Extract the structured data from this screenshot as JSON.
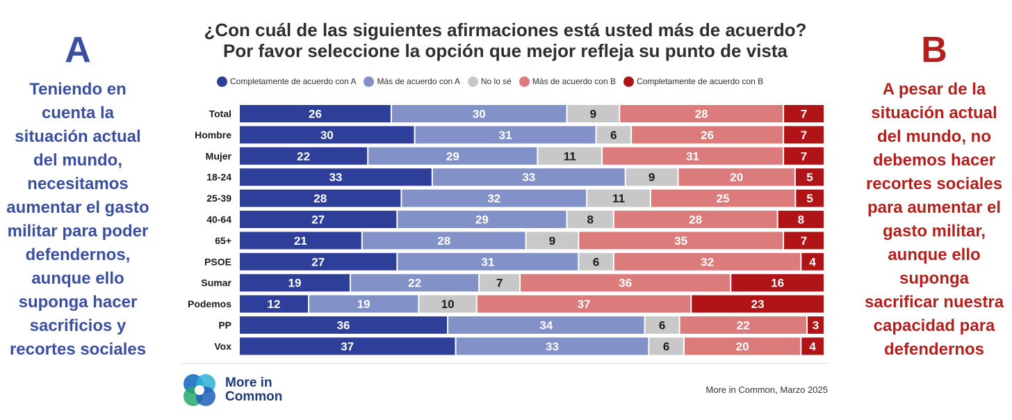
{
  "side_a": {
    "letter": "A",
    "text": "Teniendo en cuenta la situación actual del mundo, necesitamos aumentar el gasto militar para poder defendernos, aunque ello suponga hacer sacrificios y recortes sociales"
  },
  "side_b": {
    "letter": "B",
    "text": "A pesar de la situación actual del mundo, no debemos hacer recortes sociales para aumentar el gasto militar, aunque ello suponga sacrificar nuestra capacidad para defendernos"
  },
  "colors": {
    "side_a": "#3a4fa0",
    "side_b": "#b3201e",
    "series": [
      "#2e3f9a",
      "#8291c8",
      "#c8c8c8",
      "#dc7b7c",
      "#b01416"
    ],
    "label_light": "#ffffff",
    "label_dark": "#1a1a1a"
  },
  "chart_data": {
    "type": "bar",
    "orientation": "horizontal",
    "stacked": true,
    "title": "¿Con cuál de las siguientes afirmaciones está usted más de acuerdo?",
    "subtitle": "Por favor seleccione la opción que mejor refleja su punto de vista",
    "legend_position": "top",
    "categories": [
      "Total",
      "Hombre",
      "Mujer",
      "18-24",
      "25-39",
      "40-64",
      "65+",
      "PSOE",
      "Sumar",
      "Podemos",
      "PP",
      "Vox"
    ],
    "series": [
      {
        "name": "Completamente de acuerdo con A",
        "values": [
          26,
          30,
          22,
          33,
          28,
          27,
          21,
          27,
          19,
          12,
          36,
          37
        ]
      },
      {
        "name": "Más de acuerdo con A",
        "values": [
          30,
          31,
          29,
          33,
          32,
          29,
          28,
          31,
          22,
          19,
          34,
          33
        ]
      },
      {
        "name": "No lo sé",
        "values": [
          9,
          6,
          11,
          9,
          11,
          8,
          9,
          6,
          7,
          10,
          6,
          6
        ]
      },
      {
        "name": "Más de acuerdo con B",
        "values": [
          28,
          26,
          31,
          20,
          25,
          28,
          35,
          32,
          36,
          37,
          22,
          20
        ]
      },
      {
        "name": "Completamente de acuerdo con B",
        "values": [
          7,
          7,
          7,
          5,
          5,
          8,
          7,
          4,
          16,
          23,
          3,
          4
        ]
      }
    ]
  },
  "branding": {
    "logo_line1": "More in",
    "logo_line2": "Common",
    "source": "More in Common, Marzo 2025"
  }
}
